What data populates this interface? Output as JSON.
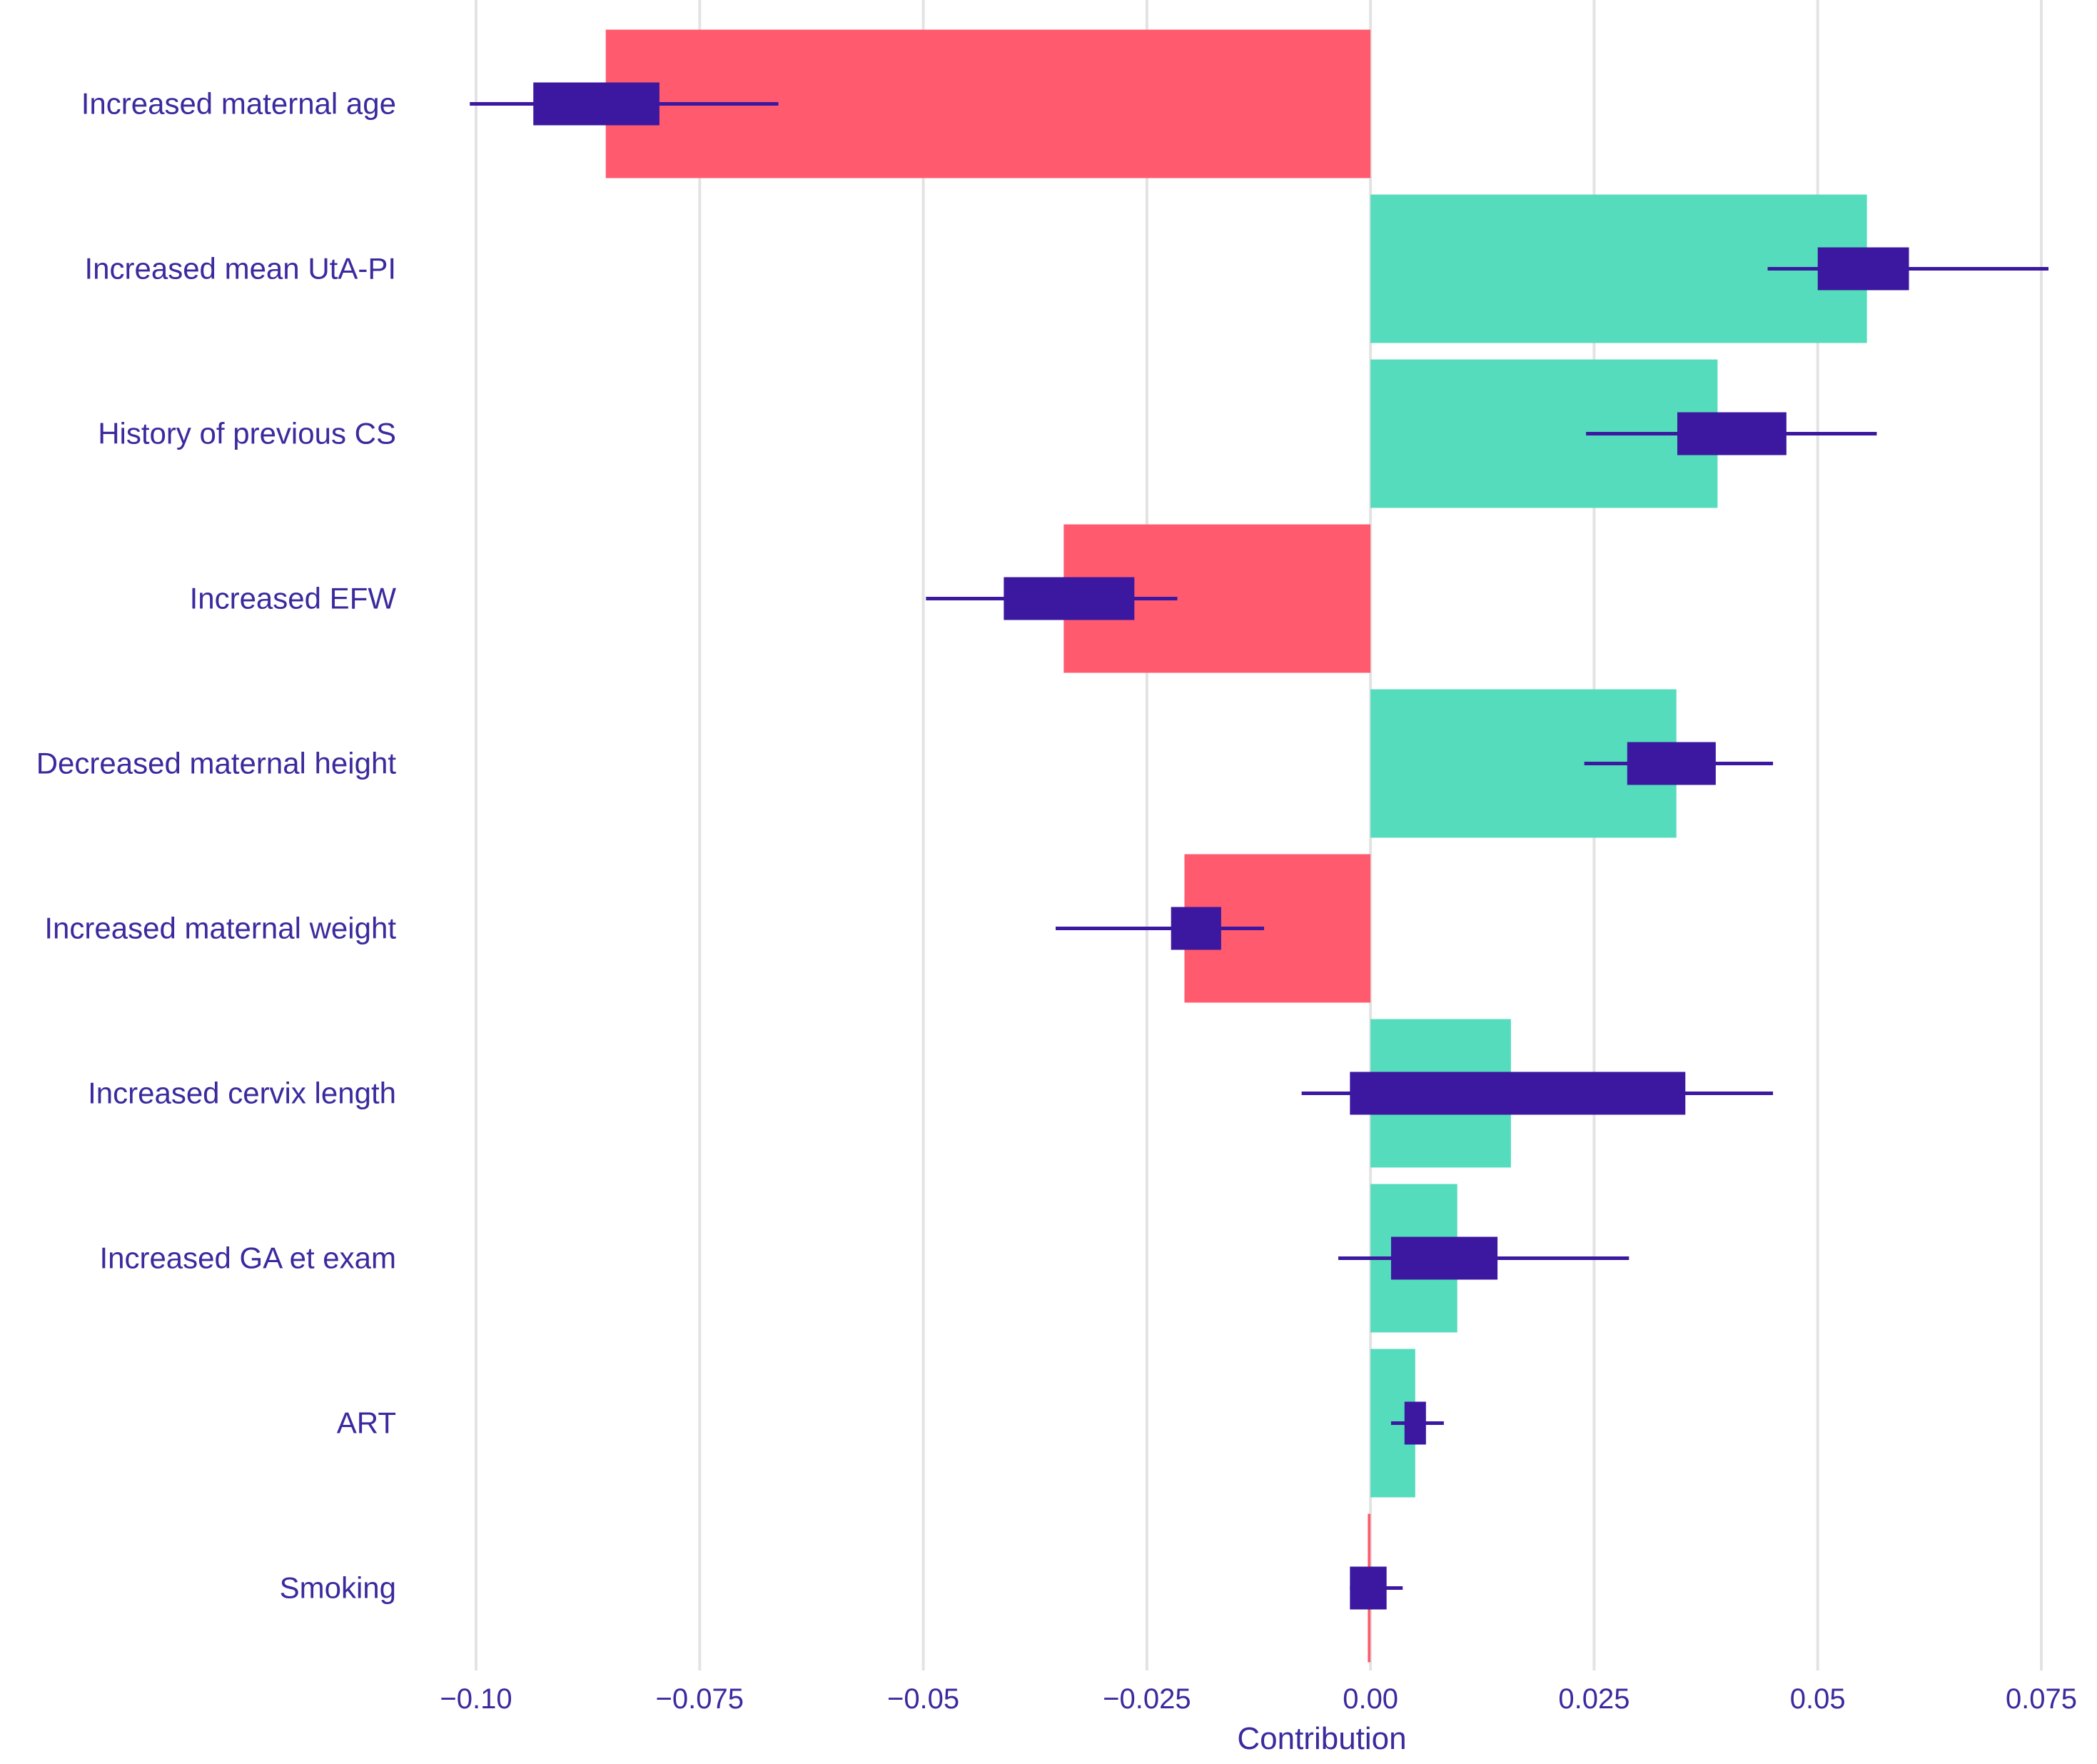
{
  "chart_data": {
    "type": "bar",
    "title": "",
    "xlabel": "Contribution",
    "ylabel": "",
    "xlim": [
      -0.1,
      0.075
    ],
    "grid": "vertical",
    "xticks": [
      -0.1,
      -0.075,
      -0.05,
      -0.025,
      0.0,
      0.025,
      0.05,
      0.075
    ],
    "xtick_labels": [
      "−0.10",
      "−0.075",
      "−0.05",
      "−0.025",
      "0.00",
      "0.025",
      "0.05",
      "0.075"
    ],
    "colors": {
      "negative": "#ff5a6e",
      "positive": "#55dcbc",
      "box": "#3b189f",
      "grid": "#e3e3e3",
      "text": "#3b2a9e"
    },
    "series": [
      {
        "name": "contribution",
        "categories": [
          "Increased maternal age",
          "Increased mean UtA-PI",
          "History of previous CS",
          "Increased EFW",
          "Decreased maternal height",
          "Increased maternal weight",
          "Increased cervix length",
          "Increased GA et exam",
          "ART",
          "Smoking"
        ],
        "values": [
          -0.0855,
          0.0555,
          0.0388,
          -0.0343,
          0.0342,
          -0.0208,
          0.0157,
          0.0097,
          0.005,
          -0.0003
        ]
      }
    ],
    "distribution": [
      {
        "category": "Increased maternal age",
        "whisker_low": -0.1007,
        "box_low": -0.0936,
        "box_high": -0.0795,
        "whisker_high": -0.0662
      },
      {
        "category": "Increased mean UtA-PI",
        "whisker_low": 0.0444,
        "box_low": 0.05,
        "box_high": 0.0602,
        "whisker_high": 0.0758
      },
      {
        "category": "History of previous CS",
        "whisker_low": 0.0241,
        "box_low": 0.0343,
        "box_high": 0.0465,
        "whisker_high": 0.0566
      },
      {
        "category": "Increased EFW",
        "whisker_low": -0.0497,
        "box_low": -0.041,
        "box_high": -0.0264,
        "whisker_high": -0.0216
      },
      {
        "category": "Decreased maternal height",
        "whisker_low": 0.0239,
        "box_low": 0.0287,
        "box_high": 0.0386,
        "whisker_high": 0.045
      },
      {
        "category": "Increased maternal weight",
        "whisker_low": -0.0352,
        "box_low": -0.0223,
        "box_high": -0.0167,
        "whisker_high": -0.0119
      },
      {
        "category": "Increased cervix length",
        "whisker_low": -0.0077,
        "box_low": -0.0023,
        "box_high": 0.0352,
        "whisker_high": 0.045
      },
      {
        "category": "Increased GA et exam",
        "whisker_low": -0.0036,
        "box_low": 0.0023,
        "box_high": 0.0142,
        "whisker_high": 0.0289
      },
      {
        "category": "ART",
        "whisker_low": 0.0023,
        "box_low": 0.0038,
        "box_high": 0.0062,
        "whisker_high": 0.0082
      },
      {
        "category": "Smoking",
        "whisker_low": -0.0023,
        "box_low": -0.0023,
        "box_high": 0.0018,
        "whisker_high": 0.0036
      }
    ]
  }
}
